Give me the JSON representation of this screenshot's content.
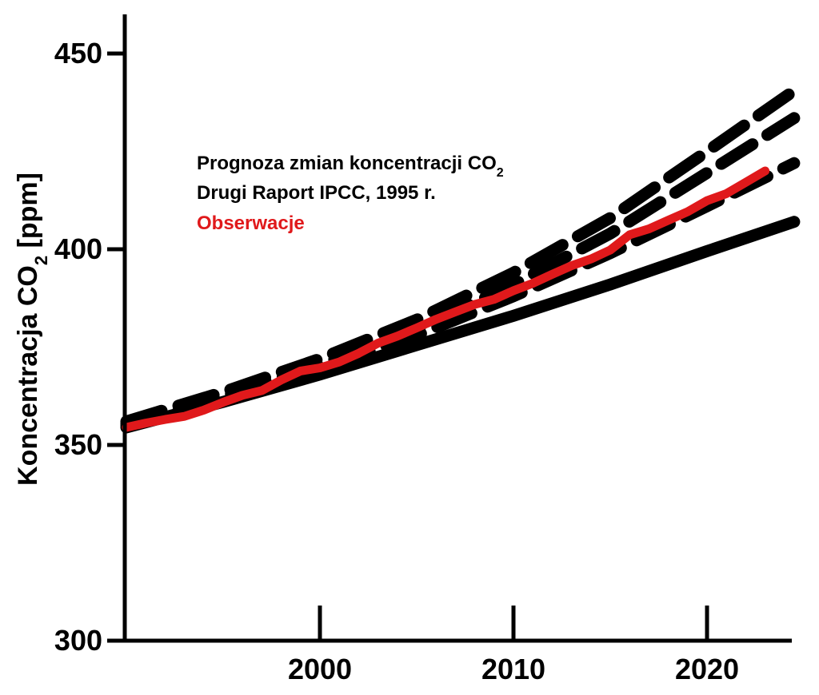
{
  "chart_data": {
    "type": "line",
    "title": "",
    "ylabel": "Koncentracja CO",
    "ylabel_sub": "2",
    "ylabel_unit": " [ppm]",
    "xlabel": "",
    "xlim": [
      1990,
      2024.5
    ],
    "ylim": [
      300,
      460
    ],
    "x_ticks": [
      2000,
      2010,
      2020
    ],
    "x_tick_labels": [
      "2000",
      "2010",
      "2020"
    ],
    "y_ticks": [
      300,
      350,
      400,
      450
    ],
    "y_tick_labels": [
      "300",
      "350",
      "400",
      "450"
    ],
    "grid": false,
    "legend": {
      "placement": "upper-left inside plot",
      "entries": [
        {
          "text": "Prognoza zmian koncentracji CO",
          "sub": "2",
          "color": "#000000"
        },
        {
          "text": "Drugi Raport IPCC, 1995 r.",
          "sub": "",
          "color": "#000000"
        },
        {
          "text": "Obserwacje",
          "sub": "",
          "color": "#e0191b"
        }
      ]
    },
    "series": [
      {
        "name": "Obserwacje",
        "color": "#e0191b",
        "style": "solid",
        "x": [
          1990,
          1991,
          1992,
          1993,
          1994,
          1995,
          1996,
          1997,
          1998,
          1999,
          2000,
          2001,
          2002,
          2003,
          2004,
          2005,
          2006,
          2007,
          2008,
          2009,
          2010,
          2011,
          2012,
          2013,
          2014,
          2015,
          2016,
          2017,
          2018,
          2019,
          2020,
          2021,
          2022,
          2023
        ],
        "y": [
          354.5,
          355.6,
          356.5,
          357.3,
          358.9,
          360.9,
          362.7,
          363.9,
          366.6,
          368.9,
          369.7,
          371.2,
          373.4,
          376.0,
          377.8,
          379.9,
          382.1,
          384.0,
          385.9,
          387.2,
          389.4,
          391.3,
          393.6,
          395.8,
          397.5,
          399.8,
          403.7,
          405.2,
          407.4,
          409.6,
          412.4,
          414.2,
          417.1,
          420.0
        ]
      },
      {
        "name": "",
        "color": "#000000",
        "style": "solid",
        "x": [
          1990,
          1995,
          2000,
          2005,
          2010,
          2015,
          2020,
          2024.5
        ],
        "y": [
          354.5,
          361.0,
          368.0,
          375.5,
          383.0,
          391.0,
          399.5,
          407.0
        ]
      },
      {
        "name": "",
        "color": "#000000",
        "style": "dashed",
        "x": [
          1990,
          1995,
          2000,
          2005,
          2010,
          2015,
          2020,
          2024.5
        ],
        "y": [
          355.0,
          362.0,
          369.5,
          378.0,
          388.0,
          399.0,
          411.0,
          422.0
        ]
      },
      {
        "name": "",
        "color": "#000000",
        "style": "dashed",
        "x": [
          1990,
          1995,
          2000,
          2005,
          2010,
          2015,
          2020,
          2024.5
        ],
        "y": [
          355.5,
          362.5,
          370.5,
          379.5,
          391.0,
          404.0,
          419.5,
          433.5
        ]
      },
      {
        "name": "",
        "color": "#000000",
        "style": "dashed",
        "x": [
          1990,
          1995,
          2000,
          2005,
          2010,
          2015,
          2020,
          2024.5
        ],
        "y": [
          356.0,
          363.5,
          372.0,
          382.0,
          394.0,
          408.0,
          425.0,
          440.5
        ]
      }
    ]
  }
}
